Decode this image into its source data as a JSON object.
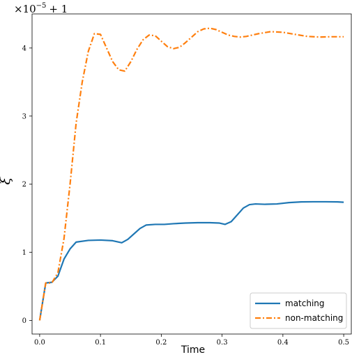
{
  "chart_data": {
    "type": "line",
    "title": "",
    "xlabel": "Time",
    "ylabel": "ξ",
    "offset_label": {
      "base": "×10",
      "exponent": "−5",
      "suffix": "+ 1"
    },
    "xlim": [
      -0.0125,
      0.5125
    ],
    "ylim": [
      -0.2,
      4.5
    ],
    "x_ticks": [
      0.0,
      0.1,
      0.2,
      0.3,
      0.4,
      0.5
    ],
    "x_tick_labels": [
      "0.0",
      "0.1",
      "0.2",
      "0.3",
      "0.4",
      "0.5"
    ],
    "y_ticks": [
      0,
      1,
      2,
      3,
      4
    ],
    "y_tick_labels": [
      "0",
      "1",
      "2",
      "3",
      "4"
    ],
    "grid": false,
    "legend_position": "lower-right",
    "series": [
      {
        "name": "matching",
        "color": "#1f77b4",
        "style": "solid",
        "x": [
          0.0,
          0.01,
          0.02,
          0.03,
          0.04,
          0.05,
          0.06,
          0.08,
          0.1,
          0.12,
          0.135,
          0.145,
          0.155,
          0.165,
          0.175,
          0.19,
          0.205,
          0.22,
          0.24,
          0.26,
          0.28,
          0.295,
          0.305,
          0.315,
          0.325,
          0.335,
          0.345,
          0.355,
          0.37,
          0.39,
          0.41,
          0.43,
          0.45,
          0.47,
          0.49,
          0.5
        ],
        "y": [
          0.0,
          0.55,
          0.56,
          0.65,
          0.9,
          1.05,
          1.15,
          1.175,
          1.18,
          1.17,
          1.14,
          1.19,
          1.27,
          1.35,
          1.4,
          1.41,
          1.41,
          1.42,
          1.43,
          1.435,
          1.435,
          1.43,
          1.41,
          1.45,
          1.55,
          1.65,
          1.7,
          1.71,
          1.705,
          1.71,
          1.73,
          1.74,
          1.742,
          1.742,
          1.74,
          1.735
        ]
      },
      {
        "name": "non-matching",
        "color": "#ff7f0e",
        "style": "dashdot",
        "x": [
          0.0,
          0.01,
          0.02,
          0.03,
          0.04,
          0.05,
          0.06,
          0.07,
          0.08,
          0.09,
          0.1,
          0.11,
          0.12,
          0.13,
          0.14,
          0.15,
          0.16,
          0.17,
          0.18,
          0.19,
          0.2,
          0.21,
          0.22,
          0.23,
          0.24,
          0.25,
          0.26,
          0.27,
          0.28,
          0.29,
          0.3,
          0.31,
          0.32,
          0.33,
          0.34,
          0.35,
          0.36,
          0.38,
          0.4,
          0.42,
          0.44,
          0.46,
          0.48,
          0.5
        ],
        "y": [
          0.0,
          0.55,
          0.55,
          0.7,
          1.2,
          2.0,
          2.9,
          3.5,
          3.95,
          4.21,
          4.2,
          4.0,
          3.8,
          3.68,
          3.66,
          3.8,
          3.98,
          4.12,
          4.19,
          4.18,
          4.1,
          4.02,
          3.99,
          4.01,
          4.08,
          4.16,
          4.24,
          4.28,
          4.29,
          4.27,
          4.23,
          4.19,
          4.17,
          4.16,
          4.17,
          4.19,
          4.21,
          4.24,
          4.23,
          4.2,
          4.17,
          4.16,
          4.165,
          4.165
        ]
      }
    ]
  }
}
